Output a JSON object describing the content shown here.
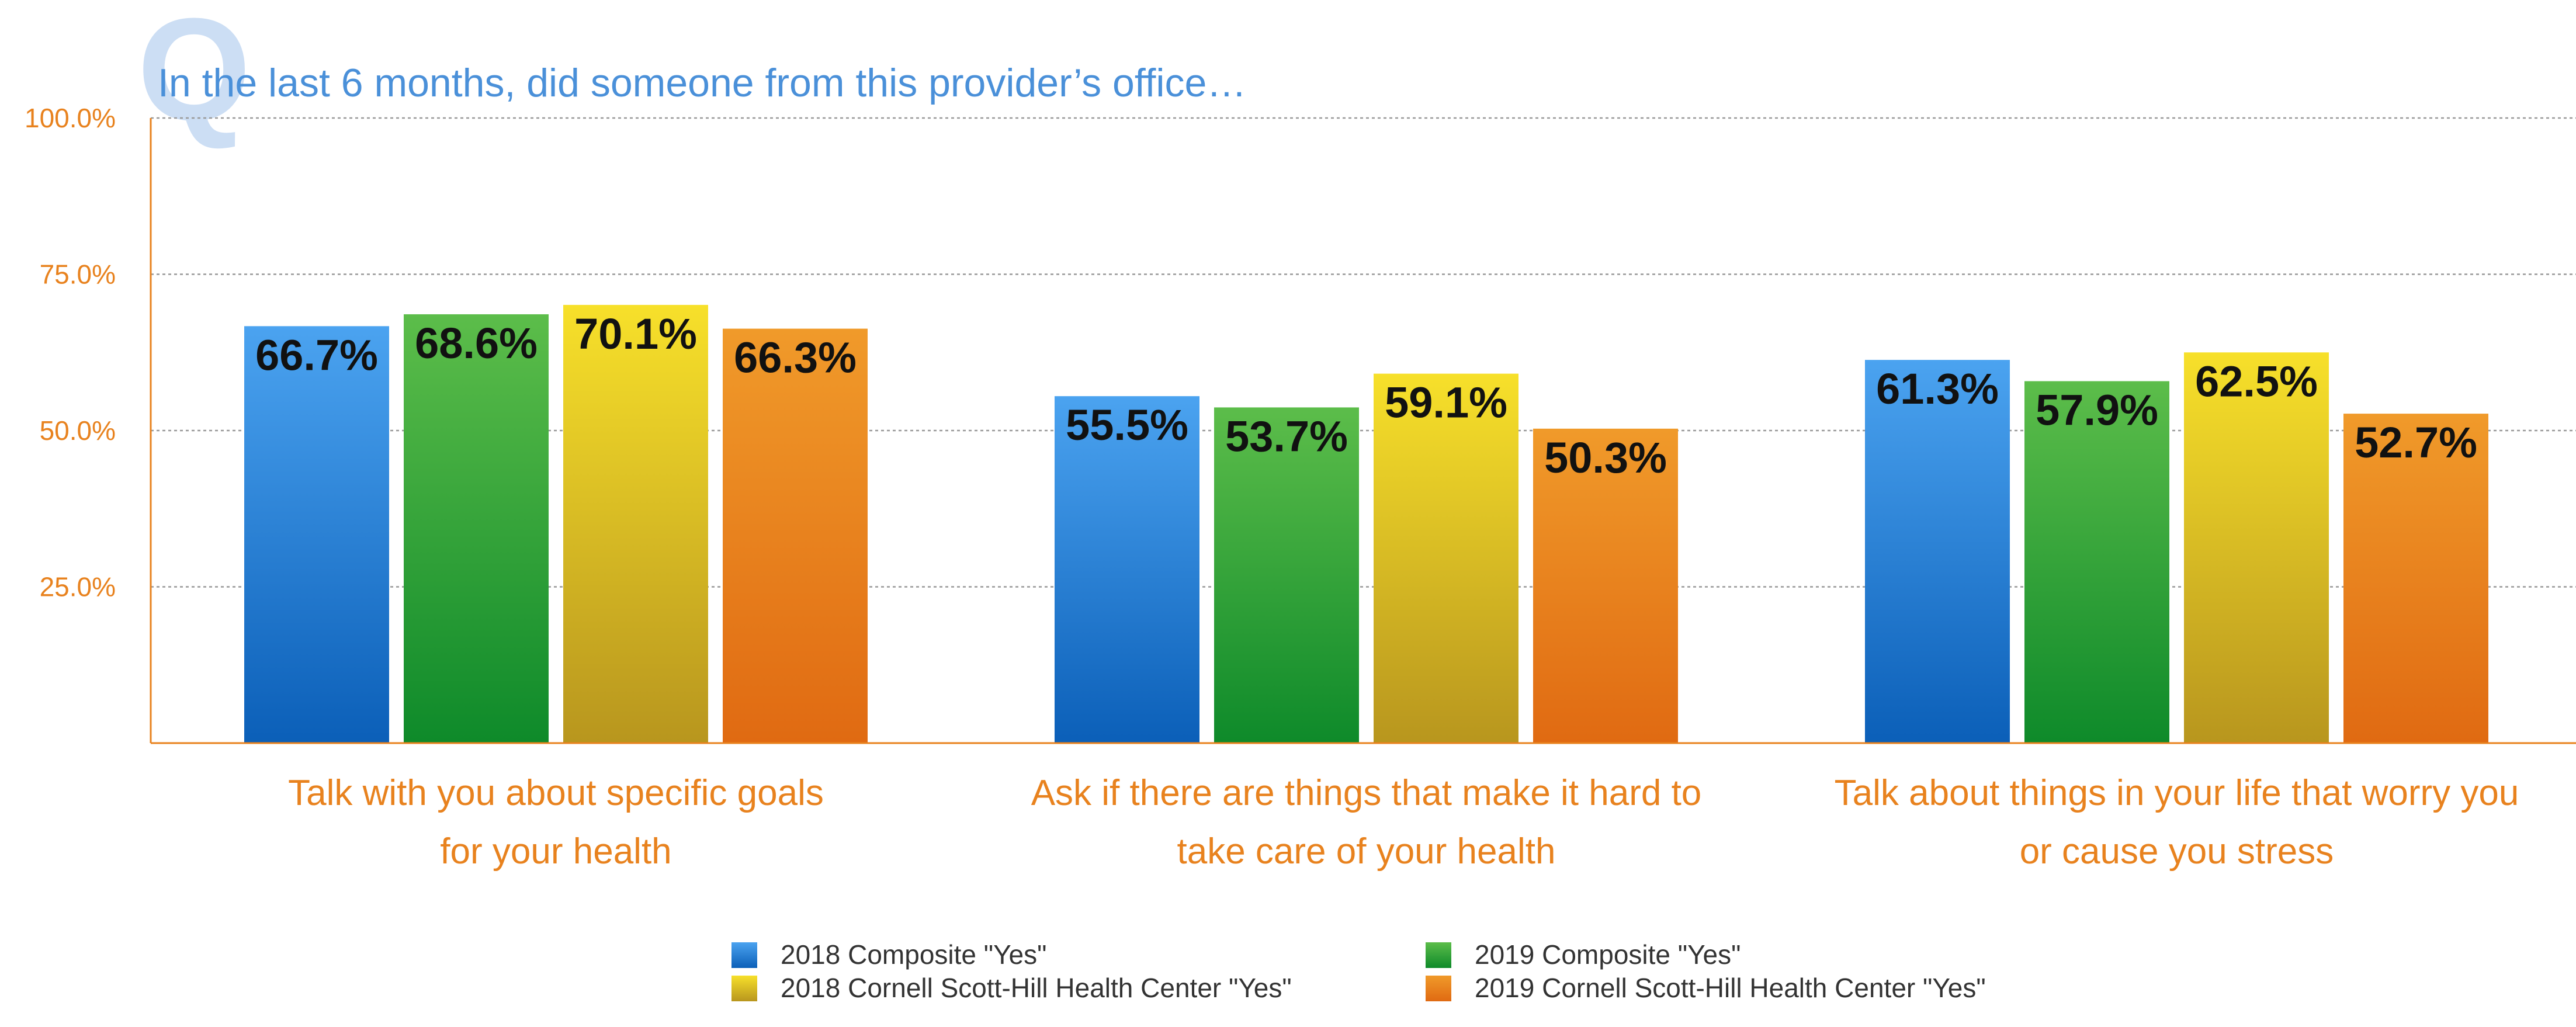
{
  "chart_data": {
    "type": "bar",
    "title": "In the last 6 months, did someone from this provider’s office…",
    "title_watermark": "Q",
    "categories": [
      [
        "Talk with you about specific goals",
        "for your health"
      ],
      [
        "Ask if there are things that make it hard to",
        "take care of your health"
      ],
      [
        "Talk about things in your life that worry you",
        "or cause you stress"
      ]
    ],
    "series": [
      {
        "name": "2018 Composite \"Yes\"",
        "values": [
          66.7,
          55.5,
          61.3
        ],
        "labels": [
          "66.7%",
          "55.5%",
          "61.3%"
        ],
        "color": "#2E86DE",
        "gradient": [
          "#4BA3F0",
          "#0B5FB8"
        ]
      },
      {
        "name": "2019 Composite \"Yes\"",
        "values": [
          68.6,
          53.7,
          57.9
        ],
        "labels": [
          "68.6%",
          "53.7%",
          "57.9%"
        ],
        "color": "#3DA33A",
        "gradient": [
          "#5CBD4A",
          "#0E8A2A"
        ]
      },
      {
        "name": "2018 Cornell Scott-Hill Health Center \"Yes\"",
        "values": [
          70.1,
          59.1,
          62.5
        ],
        "labels": [
          "70.1%",
          "59.1%",
          "62.5%"
        ],
        "color": "#E8CC1E",
        "gradient": [
          "#F7E02A",
          "#B8961E"
        ]
      },
      {
        "name": "2019 Cornell Scott-Hill Health Center \"Yes\"",
        "values": [
          66.3,
          50.3,
          52.7
        ],
        "labels": [
          "66.3%",
          "50.3%",
          "52.7%"
        ],
        "color": "#E8821E",
        "gradient": [
          "#F09A2A",
          "#E06A12"
        ]
      }
    ],
    "ylim": [
      0,
      100
    ],
    "yticks": [
      25,
      50,
      75,
      100
    ],
    "ytick_labels": [
      "25.0%",
      "50.0%",
      "75.0%",
      "100.0%"
    ],
    "xlabel": "",
    "ylabel": "",
    "grid": true,
    "legend_position": "bottom-center"
  },
  "colors": {
    "axis": "#E8821E",
    "grid": "#999999",
    "title": "#4A90D9"
  }
}
